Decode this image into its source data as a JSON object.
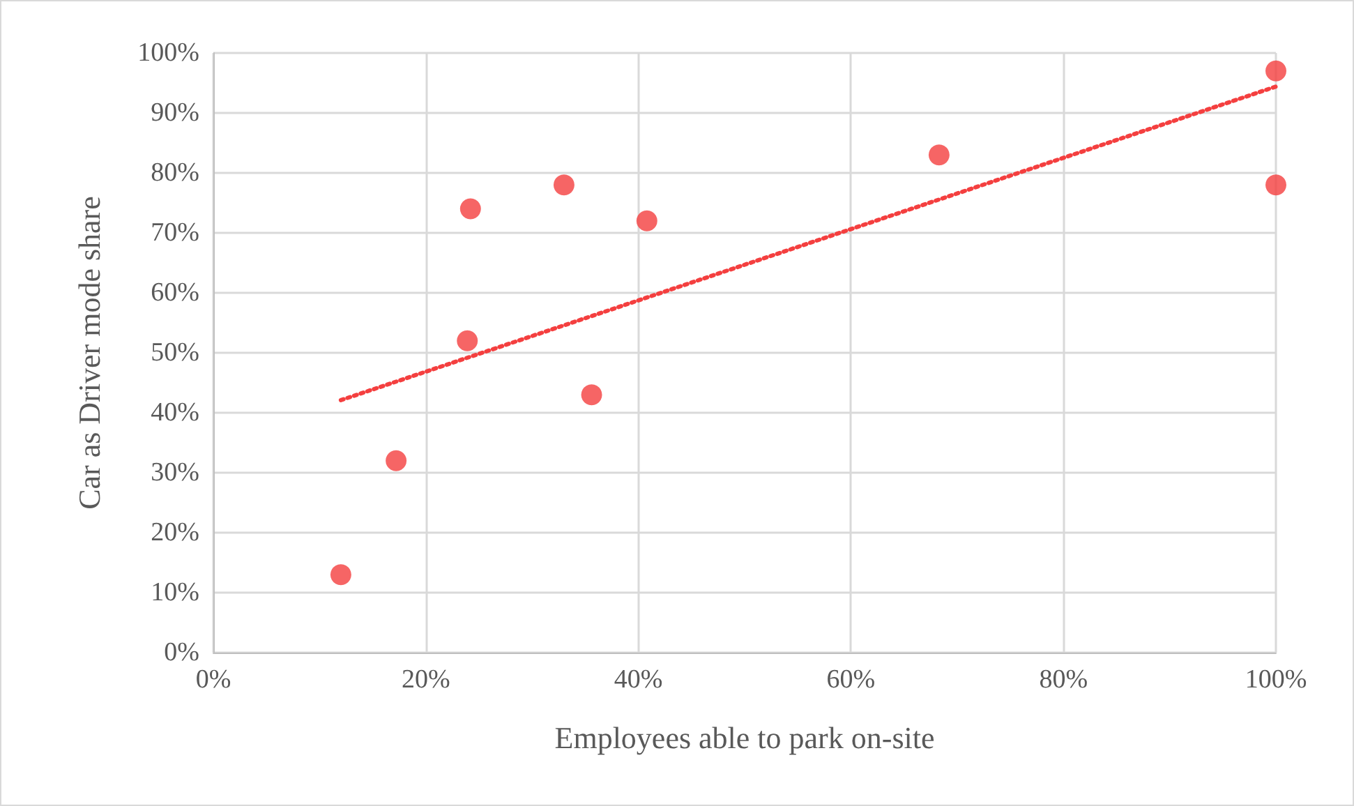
{
  "chart_data": {
    "type": "scatter",
    "xlabel": "Employees able to park on-site",
    "ylabel": "Car as Driver mode share",
    "series": [
      {
        "color": "#f43f3f",
        "marker": "circle",
        "x": [
          12,
          17.2,
          24.2,
          23.9,
          33,
          35.6,
          40.8,
          68.3,
          100,
          100
        ],
        "values": [
          13,
          32,
          74,
          52,
          78,
          43,
          72,
          83,
          97,
          78
        ]
      },
      {
        "type": "line",
        "color": "#f43f3f",
        "marker": "none",
        "line_style": "dotted",
        "x": [
          12,
          100
        ],
        "values": [
          42.1,
          94.4
        ]
      }
    ],
    "xlim": [
      0,
      100
    ],
    "ylim": [
      0,
      100
    ],
    "xticks": [
      {
        "value": 0,
        "label": "0%"
      },
      {
        "value": 20,
        "label": "20%"
      },
      {
        "value": 40,
        "label": "40%"
      },
      {
        "value": 60,
        "label": "60%"
      },
      {
        "value": 80,
        "label": "80%"
      },
      {
        "value": 100,
        "label": "100%"
      }
    ],
    "yticks": [
      {
        "value": 0,
        "label": "0%"
      },
      {
        "value": 10,
        "label": "10%"
      },
      {
        "value": 20,
        "label": "20%"
      },
      {
        "value": 30,
        "label": "30%"
      },
      {
        "value": 40,
        "label": "40%"
      },
      {
        "value": 50,
        "label": "50%"
      },
      {
        "value": 60,
        "label": "60%"
      },
      {
        "value": 70,
        "label": "70%"
      },
      {
        "value": 80,
        "label": "80%"
      },
      {
        "value": 90,
        "label": "90%"
      },
      {
        "value": 100,
        "label": "100%"
      }
    ],
    "grid": true
  }
}
